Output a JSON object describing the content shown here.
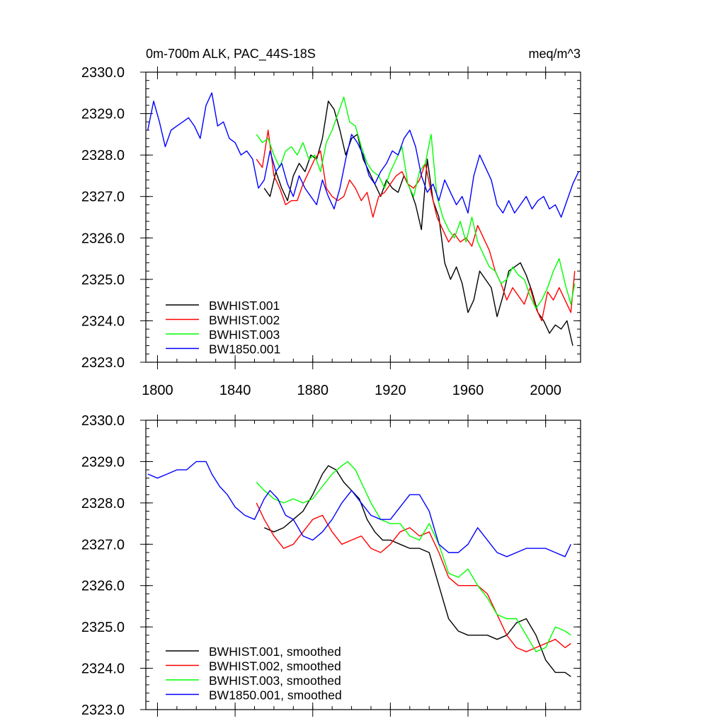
{
  "header": {
    "left_title": "0m-700m ALK, PAC_44S-18S",
    "right_title": "meq/m^3"
  },
  "chart_data": [
    {
      "type": "line",
      "title": "0m-700m ALK, PAC_44S-18S",
      "units": "meq/m^3",
      "xlim": [
        1794,
        2018
      ],
      "ylim": [
        2323.0,
        2330.0
      ],
      "x_ticks": [
        1800,
        1840,
        1880,
        1920,
        1960,
        2000
      ],
      "x_tick_labels": [
        "1800",
        "1840",
        "1880",
        "1920",
        "1960",
        "2000"
      ],
      "y_ticks": [
        2323.0,
        2324.0,
        2325.0,
        2326.0,
        2327.0,
        2328.0,
        2329.0,
        2330.0
      ],
      "y_tick_labels": [
        "2323.0",
        "2324.0",
        "2325.0",
        "2326.0",
        "2327.0",
        "2328.0",
        "2329.0",
        "2330.0"
      ],
      "grid": false,
      "legend_position": "bottom-left",
      "series": [
        {
          "name": "BWHIST.001",
          "color": "#000000",
          "x": [
            1855,
            1858,
            1861,
            1864,
            1867,
            1870,
            1873,
            1876,
            1879,
            1882,
            1885,
            1888,
            1891,
            1894,
            1897,
            1900,
            1903,
            1906,
            1909,
            1912,
            1915,
            1918,
            1921,
            1924,
            1927,
            1930,
            1933,
            1936,
            1939,
            1942,
            1945,
            1948,
            1951,
            1954,
            1957,
            1960,
            1963,
            1966,
            1969,
            1972,
            1975,
            1978,
            1981,
            1984,
            1987,
            1990,
            1993,
            1996,
            1999,
            2002,
            2005,
            2008,
            2011,
            2014
          ],
          "y": [
            2327.2,
            2327.0,
            2327.6,
            2327.2,
            2326.9,
            2327.5,
            2327.8,
            2327.6,
            2328.0,
            2327.9,
            2328.4,
            2329.3,
            2329.1,
            2328.6,
            2328.0,
            2328.4,
            2328.5,
            2327.9,
            2327.6,
            2327.3,
            2327.0,
            2327.4,
            2327.2,
            2327.1,
            2327.5,
            2327.2,
            2326.8,
            2326.2,
            2327.9,
            2326.9,
            2326.5,
            2325.4,
            2325.0,
            2325.3,
            2324.9,
            2324.2,
            2324.5,
            2325.2,
            2325.0,
            2324.8,
            2324.1,
            2324.6,
            2325.2,
            2325.3,
            2325.4,
            2325.1,
            2324.7,
            2324.2,
            2324.0,
            2323.7,
            2323.9,
            2323.8,
            2324.0,
            2323.4
          ]
        },
        {
          "name": "BWHIST.002",
          "color": "#ff0000",
          "x": [
            1851,
            1854,
            1857,
            1860,
            1863,
            1866,
            1869,
            1872,
            1875,
            1878,
            1881,
            1884,
            1887,
            1890,
            1893,
            1896,
            1899,
            1902,
            1905,
            1908,
            1911,
            1914,
            1917,
            1920,
            1923,
            1926,
            1929,
            1932,
            1935,
            1938,
            1941,
            1944,
            1947,
            1950,
            1953,
            1956,
            1959,
            1962,
            1965,
            1968,
            1971,
            1974,
            1977,
            1980,
            1983,
            1986,
            1989,
            1992,
            1995,
            1998,
            2001,
            2004,
            2007,
            2010,
            2013,
            2015
          ],
          "y": [
            2327.9,
            2327.7,
            2328.6,
            2327.5,
            2327.2,
            2326.8,
            2326.9,
            2326.9,
            2327.3,
            2327.6,
            2327.9,
            2328.1,
            2327.2,
            2327.0,
            2326.9,
            2327.0,
            2327.4,
            2327.2,
            2326.9,
            2327.1,
            2326.5,
            2327.0,
            2327.1,
            2327.3,
            2327.5,
            2327.6,
            2327.3,
            2327.2,
            2327.4,
            2327.8,
            2327.1,
            2326.5,
            2326.2,
            2325.9,
            2326.1,
            2325.9,
            2326.0,
            2325.8,
            2326.3,
            2326.0,
            2325.7,
            2325.2,
            2324.9,
            2324.5,
            2324.8,
            2324.6,
            2324.4,
            2324.8,
            2324.3,
            2324.0,
            2324.7,
            2324.5,
            2324.8,
            2324.5,
            2324.2,
            2325.2
          ]
        },
        {
          "name": "BWHIST.003",
          "color": "#00ff00",
          "x": [
            1851,
            1854,
            1857,
            1860,
            1863,
            1866,
            1869,
            1872,
            1875,
            1878,
            1881,
            1884,
            1887,
            1890,
            1893,
            1896,
            1899,
            1902,
            1905,
            1908,
            1911,
            1914,
            1917,
            1920,
            1923,
            1926,
            1929,
            1932,
            1935,
            1938,
            1941,
            1944,
            1947,
            1950,
            1953,
            1956,
            1959,
            1962,
            1965,
            1968,
            1971,
            1974,
            1977,
            1980,
            1983,
            1986,
            1989,
            1992,
            1995,
            1998,
            2001,
            2004,
            2007,
            2010,
            2013,
            2015
          ],
          "y": [
            2328.5,
            2328.3,
            2328.4,
            2328.0,
            2327.7,
            2328.1,
            2328.2,
            2328.0,
            2328.3,
            2327.9,
            2328.0,
            2327.6,
            2328.3,
            2328.6,
            2329.0,
            2329.4,
            2328.8,
            2328.7,
            2328.2,
            2327.8,
            2327.6,
            2327.5,
            2327.2,
            2327.6,
            2327.9,
            2328.2,
            2327.3,
            2327.0,
            2327.6,
            2327.8,
            2328.5,
            2327.0,
            2326.5,
            2326.2,
            2326.0,
            2326.4,
            2325.9,
            2326.5,
            2325.9,
            2325.6,
            2325.3,
            2325.2,
            2324.9,
            2325.0,
            2325.3,
            2325.1,
            2325.0,
            2324.6,
            2324.3,
            2324.5,
            2324.8,
            2325.2,
            2325.5,
            2324.9,
            2324.4,
            2324.9
          ]
        },
        {
          "name": "BW1850.001",
          "color": "#0000ff",
          "x": [
            1795,
            1798,
            1801,
            1804,
            1807,
            1810,
            1813,
            1816,
            1819,
            1822,
            1825,
            1828,
            1831,
            1834,
            1837,
            1840,
            1843,
            1846,
            1849,
            1852,
            1855,
            1858,
            1861,
            1864,
            1867,
            1870,
            1873,
            1876,
            1879,
            1882,
            1885,
            1888,
            1891,
            1894,
            1897,
            1900,
            1903,
            1906,
            1909,
            1912,
            1915,
            1918,
            1921,
            1924,
            1927,
            1930,
            1933,
            1936,
            1939,
            1942,
            1945,
            1948,
            1951,
            1954,
            1957,
            1960,
            1963,
            1966,
            1969,
            1972,
            1975,
            1978,
            1981,
            1984,
            1987,
            1990,
            1993,
            1996,
            1999,
            2002,
            2005,
            2008,
            2011,
            2014,
            2017
          ],
          "y": [
            2328.6,
            2329.3,
            2328.8,
            2328.2,
            2328.6,
            2328.7,
            2328.8,
            2328.9,
            2328.7,
            2328.4,
            2329.2,
            2329.5,
            2328.7,
            2328.8,
            2328.4,
            2328.3,
            2328.0,
            2328.1,
            2327.9,
            2327.2,
            2327.4,
            2328.1,
            2327.6,
            2327.8,
            2327.3,
            2327.0,
            2327.5,
            2327.2,
            2327.0,
            2326.8,
            2327.4,
            2327.0,
            2326.7,
            2327.2,
            2327.9,
            2328.5,
            2328.3,
            2328.0,
            2327.5,
            2327.3,
            2327.6,
            2327.8,
            2328.1,
            2328.0,
            2328.4,
            2328.6,
            2328.2,
            2327.5,
            2327.1,
            2327.3,
            2326.9,
            2327.4,
            2327.1,
            2326.8,
            2327.0,
            2326.6,
            2327.5,
            2328.0,
            2327.7,
            2327.4,
            2326.8,
            2326.6,
            2326.9,
            2326.6,
            2326.8,
            2327.0,
            2326.7,
            2326.9,
            2327.0,
            2326.7,
            2326.8,
            2326.5,
            2326.9,
            2327.3,
            2327.6
          ]
        }
      ]
    },
    {
      "type": "line",
      "xlim": [
        1794,
        2018
      ],
      "ylim": [
        2323.0,
        2330.0
      ],
      "x_ticks": [
        1800,
        1840,
        1880,
        1920,
        1960,
        2000
      ],
      "y_ticks": [
        2323.0,
        2324.0,
        2325.0,
        2326.0,
        2327.0,
        2328.0,
        2329.0,
        2330.0
      ],
      "y_tick_labels": [
        "2323.0",
        "2324.0",
        "2325.0",
        "2326.0",
        "2327.0",
        "2328.0",
        "2329.0",
        "2330.0"
      ],
      "grid": false,
      "legend_position": "bottom-left",
      "series": [
        {
          "name": "BWHIST.001, smoothed",
          "color": "#000000",
          "x": [
            1855,
            1860,
            1865,
            1870,
            1875,
            1880,
            1885,
            1888,
            1892,
            1896,
            1900,
            1904,
            1908,
            1912,
            1916,
            1920,
            1925,
            1930,
            1935,
            1940,
            1945,
            1950,
            1955,
            1960,
            1965,
            1970,
            1975,
            1980,
            1985,
            1990,
            1995,
            2000,
            2005,
            2010,
            2013
          ],
          "y": [
            2327.4,
            2327.3,
            2327.4,
            2327.6,
            2327.8,
            2328.2,
            2328.7,
            2328.9,
            2328.8,
            2328.5,
            2328.3,
            2328.1,
            2327.6,
            2327.3,
            2327.1,
            2327.1,
            2327.0,
            2326.9,
            2326.9,
            2326.8,
            2326.0,
            2325.2,
            2324.9,
            2324.8,
            2324.8,
            2324.8,
            2324.7,
            2324.8,
            2325.1,
            2325.2,
            2324.8,
            2324.2,
            2323.9,
            2323.9,
            2323.8
          ]
        },
        {
          "name": "BWHIST.002, smoothed",
          "color": "#ff0000",
          "x": [
            1851,
            1855,
            1860,
            1865,
            1870,
            1875,
            1880,
            1885,
            1890,
            1895,
            1900,
            1905,
            1910,
            1915,
            1920,
            1925,
            1930,
            1935,
            1940,
            1945,
            1950,
            1955,
            1960,
            1965,
            1970,
            1975,
            1980,
            1985,
            1990,
            1995,
            2000,
            2005,
            2010,
            2013
          ],
          "y": [
            2328.0,
            2327.6,
            2327.2,
            2326.9,
            2327.0,
            2327.3,
            2327.6,
            2327.7,
            2327.3,
            2327.0,
            2327.1,
            2327.2,
            2326.9,
            2326.8,
            2327.0,
            2327.3,
            2327.4,
            2327.2,
            2327.3,
            2326.8,
            2326.2,
            2326.0,
            2326.0,
            2326.0,
            2325.8,
            2325.3,
            2324.8,
            2324.5,
            2324.4,
            2324.5,
            2324.6,
            2324.7,
            2324.5,
            2324.6
          ]
        },
        {
          "name": "BWHIST.003, smoothed",
          "color": "#00ff00",
          "x": [
            1851,
            1855,
            1860,
            1865,
            1870,
            1875,
            1880,
            1885,
            1890,
            1895,
            1898,
            1902,
            1906,
            1910,
            1915,
            1920,
            1925,
            1930,
            1935,
            1940,
            1945,
            1950,
            1955,
            1960,
            1965,
            1970,
            1975,
            1980,
            1985,
            1990,
            1995,
            2000,
            2005,
            2010,
            2013
          ],
          "y": [
            2328.5,
            2328.3,
            2328.1,
            2328.0,
            2328.1,
            2328.0,
            2328.1,
            2328.4,
            2328.7,
            2328.9,
            2329.0,
            2328.8,
            2328.4,
            2328.0,
            2327.6,
            2327.5,
            2327.5,
            2327.2,
            2327.1,
            2327.5,
            2327.0,
            2326.3,
            2326.2,
            2326.4,
            2326.0,
            2325.7,
            2325.3,
            2325.2,
            2325.2,
            2324.8,
            2324.4,
            2324.5,
            2325.0,
            2324.9,
            2324.8
          ]
        },
        {
          "name": "BW1850.001, smoothed",
          "color": "#0000ff",
          "x": [
            1795,
            1800,
            1805,
            1810,
            1815,
            1820,
            1825,
            1828,
            1832,
            1836,
            1840,
            1845,
            1850,
            1855,
            1858,
            1862,
            1866,
            1870,
            1875,
            1880,
            1885,
            1890,
            1895,
            1900,
            1905,
            1910,
            1915,
            1920,
            1925,
            1930,
            1935,
            1940,
            1945,
            1950,
            1955,
            1960,
            1965,
            1970,
            1975,
            1980,
            1985,
            1990,
            1995,
            2000,
            2005,
            2010,
            2013
          ],
          "y": [
            2328.7,
            2328.6,
            2328.7,
            2328.8,
            2328.8,
            2329.0,
            2329.0,
            2328.7,
            2328.4,
            2328.2,
            2327.9,
            2327.7,
            2327.6,
            2328.1,
            2328.3,
            2328.1,
            2327.7,
            2327.6,
            2327.2,
            2327.1,
            2327.3,
            2327.6,
            2328.0,
            2328.3,
            2328.0,
            2327.7,
            2327.6,
            2327.6,
            2327.9,
            2328.2,
            2328.2,
            2327.8,
            2327.0,
            2326.8,
            2326.8,
            2327.0,
            2327.4,
            2327.1,
            2326.8,
            2326.7,
            2326.8,
            2326.9,
            2326.9,
            2326.9,
            2326.8,
            2326.7,
            2327.0
          ]
        }
      ]
    }
  ]
}
